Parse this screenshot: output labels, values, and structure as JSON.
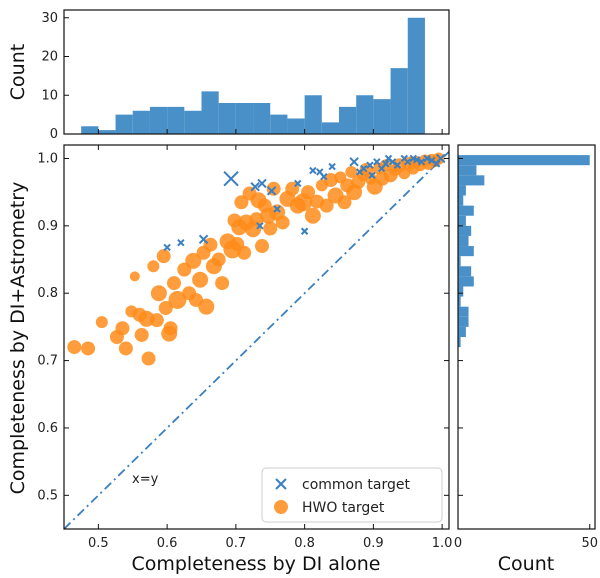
{
  "colors": {
    "common": "#3a7fc0",
    "hwo": "#ff8c1a",
    "hist": "#4a90c8",
    "frame": "#111111"
  },
  "chart_data": [
    {
      "panel": "scatter",
      "type": "scatter",
      "xlabel": "Completeness by DI alone",
      "ylabel": "Completeness by DI+Astrometry",
      "xlim": [
        0.45,
        1.01
      ],
      "ylim": [
        0.45,
        1.02
      ],
      "xticks": [
        0.5,
        0.6,
        0.7,
        0.8,
        0.9,
        1.0
      ],
      "xtick_labels": [
        "0.5",
        "0.6",
        "0.7",
        "0.8",
        "0.9",
        "1.0"
      ],
      "yticks": [
        0.5,
        0.6,
        0.7,
        0.8,
        0.9,
        1.0
      ],
      "ytick_labels": [
        "0.5",
        "0.6",
        "0.7",
        "0.8",
        "0.9",
        "1.0"
      ],
      "reference_line": {
        "label": "x=y",
        "style": "dash-dot"
      },
      "legend": {
        "position": "bottom-right",
        "entries": [
          "common target",
          "HWO target"
        ]
      },
      "series": [
        {
          "name": "HWO target",
          "marker": "circle",
          "points": [
            [
              0.465,
              0.72
            ],
            [
              0.485,
              0.718
            ],
            [
              0.505,
              0.757
            ],
            [
              0.527,
              0.735
            ],
            [
              0.535,
              0.748
            ],
            [
              0.54,
              0.718
            ],
            [
              0.548,
              0.773
            ],
            [
              0.553,
              0.825
            ],
            [
              0.56,
              0.768
            ],
            [
              0.563,
              0.738
            ],
            [
              0.57,
              0.762
            ],
            [
              0.573,
              0.703
            ],
            [
              0.58,
              0.84
            ],
            [
              0.585,
              0.76
            ],
            [
              0.588,
              0.8
            ],
            [
              0.595,
              0.855
            ],
            [
              0.598,
              0.778
            ],
            [
              0.603,
              0.74
            ],
            [
              0.605,
              0.748
            ],
            [
              0.61,
              0.815
            ],
            [
              0.615,
              0.79
            ],
            [
              0.625,
              0.835
            ],
            [
              0.632,
              0.8
            ],
            [
              0.638,
              0.848
            ],
            [
              0.642,
              0.79
            ],
            [
              0.648,
              0.82
            ],
            [
              0.653,
              0.86
            ],
            [
              0.657,
              0.78
            ],
            [
              0.663,
              0.872
            ],
            [
              0.668,
              0.84
            ],
            [
              0.675,
              0.85
            ],
            [
              0.68,
              0.815
            ],
            [
              0.688,
              0.877
            ],
            [
              0.695,
              0.865
            ],
            [
              0.698,
              0.908
            ],
            [
              0.702,
              0.873
            ],
            [
              0.705,
              0.898
            ],
            [
              0.708,
              0.935
            ],
            [
              0.712,
              0.86
            ],
            [
              0.715,
              0.905
            ],
            [
              0.72,
              0.948
            ],
            [
              0.725,
              0.895
            ],
            [
              0.73,
              0.91
            ],
            [
              0.733,
              0.938
            ],
            [
              0.738,
              0.87
            ],
            [
              0.742,
              0.93
            ],
            [
              0.747,
              0.915
            ],
            [
              0.75,
              0.896
            ],
            [
              0.755,
              0.955
            ],
            [
              0.76,
              0.92
            ],
            [
              0.768,
              0.905
            ],
            [
              0.775,
              0.94
            ],
            [
              0.782,
              0.955
            ],
            [
              0.79,
              0.93
            ],
            [
              0.798,
              0.935
            ],
            [
              0.805,
              0.95
            ],
            [
              0.812,
              0.915
            ],
            [
              0.818,
              0.936
            ],
            [
              0.825,
              0.96
            ],
            [
              0.832,
              0.93
            ],
            [
              0.838,
              0.968
            ],
            [
              0.845,
              0.945
            ],
            [
              0.852,
              0.972
            ],
            [
              0.858,
              0.935
            ],
            [
              0.862,
              0.96
            ],
            [
              0.868,
              0.98
            ],
            [
              0.872,
              0.95
            ],
            [
              0.878,
              0.965
            ],
            [
              0.885,
              0.975
            ],
            [
              0.89,
              0.983
            ],
            [
              0.896,
              0.97
            ],
            [
              0.902,
              0.958
            ],
            [
              0.908,
              0.985
            ],
            [
              0.913,
              0.97
            ],
            [
              0.918,
              0.99
            ],
            [
              0.925,
              0.975
            ],
            [
              0.932,
              0.983
            ],
            [
              0.938,
              0.99
            ],
            [
              0.945,
              0.978
            ],
            [
              0.952,
              0.992
            ],
            [
              0.958,
              0.985
            ],
            [
              0.962,
              0.995
            ],
            [
              0.968,
              0.99
            ],
            [
              0.975,
              0.997
            ],
            [
              0.98,
              0.992
            ],
            [
              0.985,
              0.998
            ],
            [
              0.99,
              0.996
            ],
            [
              0.995,
              1.0
            ]
          ],
          "sizes": [
            7,
            7,
            6,
            7,
            7,
            7,
            6,
            5,
            7,
            7,
            8,
            7,
            6,
            7,
            8,
            7,
            7,
            8,
            7,
            7,
            9,
            7,
            7,
            8,
            7,
            8,
            7,
            8,
            7,
            8,
            7,
            7,
            8,
            9,
            7,
            7,
            8,
            7,
            7,
            8,
            7,
            8,
            7,
            8,
            7,
            7,
            8,
            7,
            7,
            8,
            7,
            8,
            7,
            8,
            9,
            7,
            8,
            7,
            6,
            7,
            7,
            8,
            6,
            7,
            7,
            6,
            8,
            7,
            6,
            7,
            6,
            8,
            6,
            7,
            6,
            7,
            6,
            7,
            6,
            7,
            6,
            6,
            6,
            6,
            6,
            6,
            6,
            6
          ]
        },
        {
          "name": "common target",
          "marker": "x",
          "points": [
            [
              0.653,
              0.88
            ],
            [
              0.693,
              0.97
            ],
            [
              0.728,
              0.958
            ],
            [
              0.738,
              0.963
            ],
            [
              0.752,
              0.952
            ],
            [
              0.79,
              0.963
            ],
            [
              0.812,
              0.982
            ],
            [
              0.822,
              0.98
            ],
            [
              0.828,
              0.973
            ],
            [
              0.84,
              0.988
            ],
            [
              0.872,
              0.995
            ],
            [
              0.88,
              0.98
            ],
            [
              0.886,
              0.985
            ],
            [
              0.895,
              0.99
            ],
            [
              0.898,
              0.975
            ],
            [
              0.905,
              0.995
            ],
            [
              0.912,
              0.985
            ],
            [
              0.918,
              0.992
            ],
            [
              0.922,
              1.0
            ],
            [
              0.928,
              0.995
            ],
            [
              0.935,
              0.99
            ],
            [
              0.945,
              1.0
            ],
            [
              0.95,
              0.995
            ],
            [
              0.958,
              1.0
            ],
            [
              0.963,
              0.998
            ],
            [
              0.97,
              0.995
            ],
            [
              0.978,
              1.0
            ],
            [
              0.985,
              0.997
            ],
            [
              0.992,
              0.992
            ],
            [
              0.998,
              1.0
            ],
            [
              0.6,
              0.868
            ],
            [
              0.62,
              0.875
            ],
            [
              0.735,
              0.9
            ],
            [
              0.76,
              0.925
            ],
            [
              0.8,
              0.892
            ]
          ],
          "sizes": [
            4,
            7,
            4,
            4,
            4,
            3,
            3,
            3,
            3,
            3,
            4,
            3,
            3,
            3,
            3,
            3,
            3,
            3,
            3,
            3,
            3,
            3,
            3,
            3,
            3,
            3,
            3,
            3,
            3,
            4,
            3,
            3,
            3,
            3,
            3
          ]
        }
      ]
    },
    {
      "panel": "top-histogram",
      "type": "bar",
      "xlabel": "",
      "ylabel": "Count",
      "ylim": [
        0,
        32
      ],
      "yticks": [
        0,
        10,
        20,
        30
      ],
      "ytick_labels": [
        "0",
        "10",
        "20",
        "30"
      ],
      "bin_edges": [
        0.475,
        0.5,
        0.525,
        0.55,
        0.575,
        0.6,
        0.625,
        0.65,
        0.675,
        0.7,
        0.725,
        0.75,
        0.775,
        0.8,
        0.825,
        0.85,
        0.875,
        0.9,
        0.925,
        0.95,
        0.975,
        1.0
      ],
      "values": [
        2,
        1,
        5,
        6,
        7,
        7,
        6,
        11,
        8,
        8,
        8,
        5,
        4,
        10,
        3,
        7,
        10,
        9,
        17,
        30,
        0
      ]
    },
    {
      "panel": "right-histogram",
      "type": "bar",
      "orientation": "horizontal",
      "xlabel": "Count",
      "xlim": [
        0,
        52
      ],
      "xticks": [
        0,
        50
      ],
      "xtick_labels": [
        "0",
        "50"
      ],
      "bin_edges": [
        0.72,
        0.735,
        0.75,
        0.765,
        0.78,
        0.795,
        0.81,
        0.825,
        0.84,
        0.855,
        0.87,
        0.885,
        0.9,
        0.915,
        0.93,
        0.945,
        0.96,
        0.975,
        0.99,
        1.005
      ],
      "values": [
        1,
        3,
        4,
        4,
        1,
        2,
        6,
        5,
        1,
        6,
        4,
        5,
        3,
        6,
        2,
        3,
        10,
        7,
        50
      ]
    }
  ]
}
